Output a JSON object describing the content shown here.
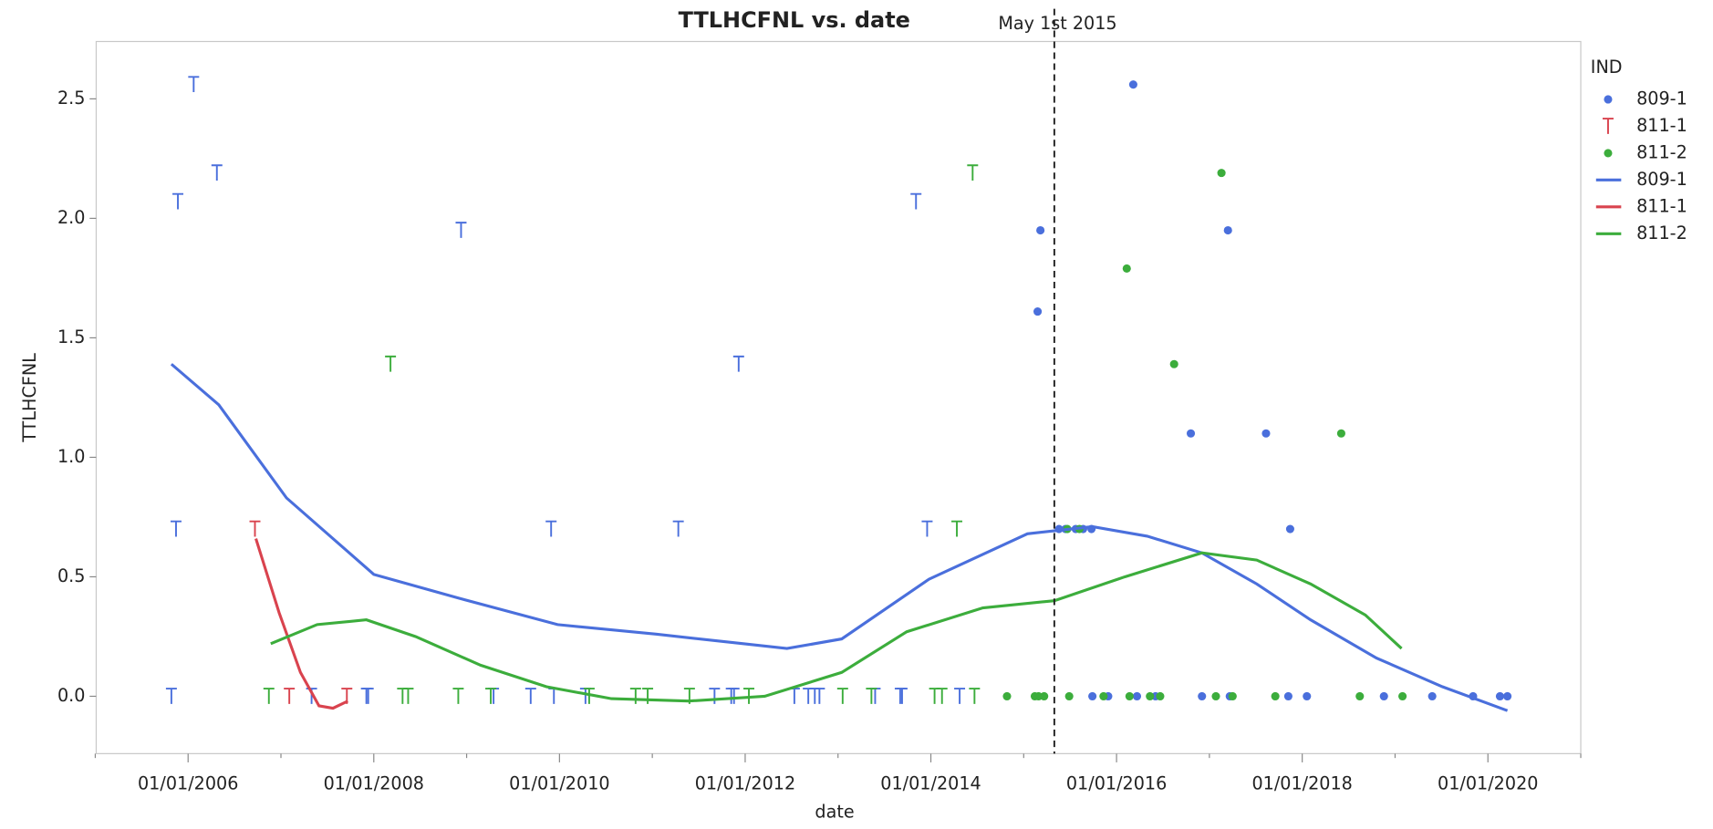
{
  "chart_data": {
    "type": "scatter",
    "title": "TTLHCFNL vs. date",
    "x_label": "date",
    "y_label": "TTLHCFNL",
    "legend_title": "IND",
    "legend": "right",
    "grid": false,
    "annotation": {
      "text": "May 1st 2015",
      "x": 2015.33
    },
    "xlim": [
      2005.01,
      2021.0
    ],
    "xticks": [
      {
        "value": 2006,
        "label": "01/01/2006"
      },
      {
        "value": 2008,
        "label": "01/01/2008"
      },
      {
        "value": 2010,
        "label": "01/01/2010"
      },
      {
        "value": 2012,
        "label": "01/01/2012"
      },
      {
        "value": 2014,
        "label": "01/01/2014"
      },
      {
        "value": 2016,
        "label": "01/01/2016"
      },
      {
        "value": 2018,
        "label": "01/01/2018"
      },
      {
        "value": 2020,
        "label": "01/01/2020"
      }
    ],
    "xminorticks": [
      2005,
      2007,
      2009,
      2011,
      2013,
      2015,
      2017,
      2019,
      2021
    ],
    "ylim": [
      -0.24,
      2.74
    ],
    "yticks": [
      {
        "value": 0,
        "label": "0.0"
      },
      0.5,
      {
        "value": 1,
        "label": "1.0"
      },
      1.5,
      {
        "value": 2,
        "label": "2.0"
      },
      2.5
    ],
    "series": [
      {
        "name": "809-1",
        "kind": "points",
        "marker": "dot",
        "color": "#4a6fdc",
        "x": [
          2006.06,
          2005.89,
          2006.31,
          2008.94,
          2011.93,
          2013.84,
          2005.87,
          2009.91,
          2011.28,
          2013.96,
          2005.82,
          2007.33,
          2007.92,
          2007.94,
          2009.29,
          2009.69,
          2009.94,
          2010.28,
          2011.67,
          2011.85,
          2011.88,
          2012.53,
          2012.68,
          2012.75,
          2012.8,
          2013.4,
          2013.67,
          2013.69,
          2014.31,
          2015.18,
          2015.15,
          2016.18,
          2017.2,
          2016.8,
          2017.61,
          2017.87,
          2015.38,
          2015.45,
          2015.56,
          2015.64,
          2015.73,
          2015.74,
          2015.91,
          2016.22,
          2016.42,
          2016.92,
          2017.22,
          2017.85,
          2018.05,
          2018.88,
          2019.4,
          2019.84,
          2020.13,
          2020.21
        ],
        "values": [
          2.56,
          2.07,
          2.19,
          1.95,
          1.39,
          2.07,
          0.7,
          0.7,
          0.7,
          0.7,
          0,
          0,
          0,
          0,
          0,
          0,
          0,
          0,
          0,
          0,
          0,
          0,
          0,
          0,
          0,
          0,
          0,
          0,
          0,
          1.95,
          1.61,
          2.56,
          1.95,
          1.1,
          1.1,
          0.7,
          0.7,
          0.7,
          0.7,
          0.7,
          0.7,
          0,
          0,
          0,
          0,
          0,
          0,
          0,
          0,
          0,
          0,
          0,
          0,
          0
        ],
        "markers": [
          "T",
          "T",
          "T",
          "T",
          "T",
          "T",
          "T",
          "T",
          "T",
          "T",
          "T",
          "T",
          "T",
          "T",
          "T",
          "T",
          "T",
          "T",
          "T",
          "T",
          "T",
          "T",
          "T",
          "T",
          "T",
          "T",
          "T",
          "T",
          "T",
          "dot",
          "dot",
          "dot",
          "dot",
          "dot",
          "dot",
          "dot",
          "dot",
          "dot",
          "dot",
          "dot",
          "dot",
          "dot",
          "dot",
          "dot",
          "dot",
          "dot",
          "dot",
          "dot",
          "dot",
          "dot",
          "dot",
          "dot",
          "dot",
          "dot"
        ]
      },
      {
        "name": "811-1",
        "kind": "points",
        "marker": "T",
        "color": "#d9434e",
        "x": [
          2006.72,
          2007.09,
          2007.71
        ],
        "values": [
          0.7,
          0,
          0
        ],
        "markers": [
          "T",
          "T",
          "T"
        ]
      },
      {
        "name": "811-2",
        "kind": "points",
        "marker": "dot",
        "color": "#3cad3c",
        "x": [
          2008.18,
          2014.45,
          2014.28,
          2006.87,
          2008.31,
          2008.37,
          2008.91,
          2009.26,
          2010.32,
          2010.82,
          2010.95,
          2011.4,
          2012.04,
          2013.05,
          2013.36,
          2014.04,
          2014.12,
          2014.47,
          2016.11,
          2017.13,
          2016.62,
          2018.42,
          2015.47,
          2015.6,
          2014.82,
          2015.12,
          2015.16,
          2015.22,
          2015.49,
          2015.86,
          2016.14,
          2016.36,
          2016.47,
          2017.07,
          2017.25,
          2017.71,
          2018.62,
          2019.08
        ],
        "values": [
          1.39,
          2.19,
          0.7,
          0,
          0,
          0,
          0,
          0,
          0,
          0,
          0,
          0,
          0,
          0,
          0,
          0,
          0,
          0,
          1.79,
          2.19,
          1.39,
          1.1,
          0.7,
          0.7,
          0,
          0,
          0,
          0,
          0,
          0,
          0,
          0,
          0,
          0,
          0,
          0,
          0,
          0
        ],
        "markers": [
          "T",
          "T",
          "T",
          "T",
          "T",
          "T",
          "T",
          "T",
          "T",
          "T",
          "T",
          "T",
          "T",
          "T",
          "T",
          "T",
          "T",
          "T",
          "dot",
          "dot",
          "dot",
          "dot",
          "dot",
          "dot",
          "dot",
          "dot",
          "dot",
          "dot",
          "dot",
          "dot",
          "dot",
          "dot",
          "dot",
          "dot",
          "dot",
          "dot",
          "dot",
          "dot"
        ]
      },
      {
        "name": "809-1",
        "kind": "line",
        "color": "#4a6fdc",
        "x": [
          2005.82,
          2006.33,
          2007.06,
          2008.0,
          2008.92,
          2009.98,
          2011.04,
          2011.98,
          2012.45,
          2013.04,
          2013.98,
          2015.04,
          2015.74,
          2016.33,
          2016.92,
          2017.51,
          2018.09,
          2018.8,
          2019.51,
          2020.21
        ],
        "values": [
          1.39,
          1.22,
          0.83,
          0.51,
          0.41,
          0.3,
          0.26,
          0.22,
          0.2,
          0.24,
          0.49,
          0.68,
          0.71,
          0.67,
          0.6,
          0.47,
          0.32,
          0.16,
          0.04,
          -0.06
        ]
      },
      {
        "name": "811-1",
        "kind": "line",
        "color": "#d9434e",
        "x": [
          2006.73,
          2006.98,
          2007.21,
          2007.41,
          2007.56,
          2007.72
        ],
        "values": [
          0.66,
          0.35,
          0.1,
          -0.04,
          -0.05,
          -0.02
        ]
      },
      {
        "name": "811-2",
        "kind": "line",
        "color": "#3cad3c",
        "x": [
          2006.89,
          2007.39,
          2007.92,
          2008.45,
          2009.15,
          2009.86,
          2010.56,
          2011.39,
          2012.21,
          2013.04,
          2013.74,
          2014.56,
          2015.33,
          2016.09,
          2016.92,
          2017.51,
          2018.09,
          2018.68,
          2019.07
        ],
        "values": [
          0.22,
          0.3,
          0.32,
          0.25,
          0.13,
          0.04,
          -0.01,
          -0.02,
          0.0,
          0.1,
          0.27,
          0.37,
          0.4,
          0.5,
          0.6,
          0.57,
          0.47,
          0.34,
          0.2
        ]
      }
    ]
  }
}
